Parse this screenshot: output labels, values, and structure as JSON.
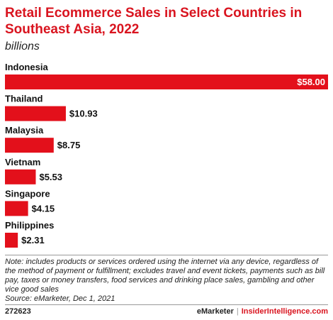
{
  "header": {
    "title": "Retail Ecommerce Sales in Select Countries in Southeast Asia, 2022",
    "subtitle": "billions"
  },
  "chart_data": {
    "type": "bar",
    "orientation": "horizontal",
    "categories": [
      "Indonesia",
      "Thailand",
      "Malaysia",
      "Vietnam",
      "Singapore",
      "Philippines"
    ],
    "values": [
      58.0,
      10.93,
      8.75,
      5.53,
      4.15,
      2.31
    ],
    "value_labels": [
      "$58.00",
      "$10.93",
      "$8.75",
      "$5.53",
      "$4.15",
      "$2.31"
    ],
    "title": "Retail Ecommerce Sales in Select Countries in Southeast Asia, 2022",
    "subtitle": "billions",
    "xlim": [
      0,
      58
    ],
    "grid": false,
    "bar_color": "#e3101b"
  },
  "footer": {
    "note": "Note: includes products or services ordered using the internet via any device, regardless of the method of payment or fulfillment; excludes travel and event tickets, payments such as bill pay, taxes or money transfers, food services and drinking place sales, gambling and other vice good sales",
    "source": "Source: eMarketer, Dec 1, 2021",
    "chart_id": "272623",
    "brand_primary": "eMarketer",
    "brand_separator": "|",
    "brand_secondary": "InsiderIntelligence.com"
  }
}
